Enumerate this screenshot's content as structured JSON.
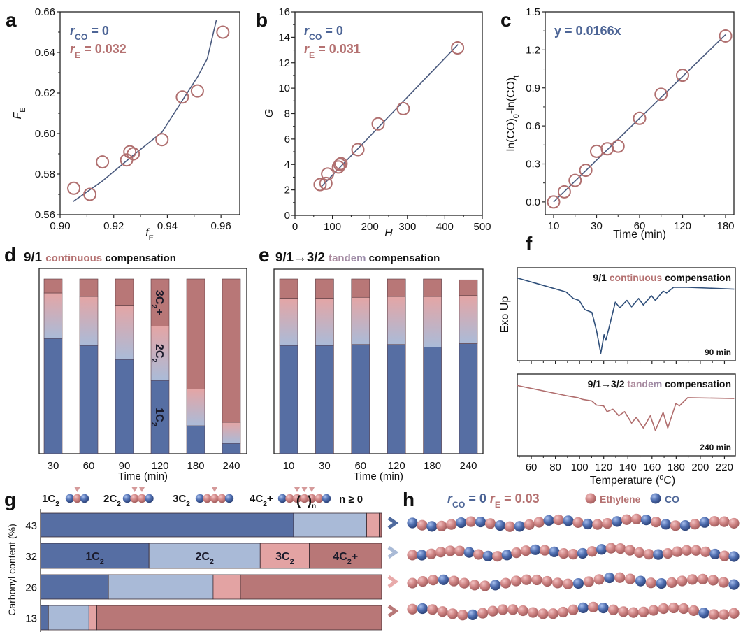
{
  "colors": {
    "blue": "#4d6596",
    "pink": "#b57272",
    "black": "#111111",
    "c1": "#566ea3",
    "c2_top": "#e4a5a5",
    "c2_bottom": "#aabbd8",
    "c2": "#a9bad7",
    "c3": "#e3a3a3",
    "c4": "#b87777",
    "marker": "#b06f6f",
    "fit": "#4a5a7e",
    "dsc_top": "#2f4f7a",
    "dsc_bottom": "#b06d6d",
    "ethylene": "#d08686",
    "co": "#4f6eb0"
  },
  "panels": {
    "a": "a",
    "b": "b",
    "c": "c",
    "d": "d",
    "e": "e",
    "f": "f",
    "g": "g",
    "h": "h"
  },
  "chart_data": [
    {
      "id": "a",
      "type": "scatter",
      "xlabel": [
        {
          "t": "f",
          "italic": true
        },
        {
          "t": "E",
          "sub": true
        }
      ],
      "ylabel": [
        {
          "t": "F",
          "italic": true
        },
        {
          "t": "E",
          "sub": true
        }
      ],
      "xlim": [
        0.9,
        0.967
      ],
      "ylim": [
        0.56,
        0.66
      ],
      "xticks": [
        "0.90",
        "0.92",
        "0.94",
        "0.96"
      ],
      "yticks": [
        "0.56",
        "0.58",
        "0.60",
        "0.62",
        "0.64",
        "0.66"
      ],
      "annotations": [
        [
          {
            "t": "r",
            "italic": true,
            "color": "blue"
          },
          {
            "t": "CO",
            "sub": true,
            "color": "blue"
          },
          {
            "t": " = 0",
            "color": "blue"
          }
        ],
        [
          {
            "t": "r",
            "italic": true,
            "color": "pink"
          },
          {
            "t": "E",
            "sub": true,
            "color": "pink"
          },
          {
            "t": " = 0.032",
            "color": "pink"
          }
        ]
      ],
      "points": [
        [
          0.9051,
          0.573
        ],
        [
          0.9111,
          0.57
        ],
        [
          0.9158,
          0.586
        ],
        [
          0.9248,
          0.587
        ],
        [
          0.926,
          0.591
        ],
        [
          0.9273,
          0.59
        ],
        [
          0.938,
          0.597
        ],
        [
          0.9456,
          0.618
        ],
        [
          0.9512,
          0.621
        ],
        [
          0.9607,
          0.65
        ]
      ],
      "fit_line": [
        [
          0.9049,
          0.5665
        ],
        [
          0.9158,
          0.5766
        ],
        [
          0.9273,
          0.5893
        ],
        [
          0.938,
          0.6007
        ],
        [
          0.9456,
          0.6163
        ],
        [
          0.9512,
          0.6278
        ],
        [
          0.9549,
          0.637
        ],
        [
          0.9583,
          0.656
        ]
      ]
    },
    {
      "id": "b",
      "type": "scatter",
      "xlabel": [
        {
          "t": "H",
          "italic": true
        }
      ],
      "ylabel": [
        {
          "t": "G",
          "italic": true
        }
      ],
      "xlim": [
        0,
        500
      ],
      "ylim": [
        0,
        16
      ],
      "xticks": [
        "0",
        "100",
        "200",
        "300",
        "400",
        "500"
      ],
      "yticks": [
        "0",
        "2",
        "4",
        "6",
        "8",
        "10",
        "12",
        "14",
        "16"
      ],
      "annotations": [
        [
          {
            "t": "r",
            "italic": true,
            "color": "blue"
          },
          {
            "t": "CO",
            "sub": true,
            "color": "blue"
          },
          {
            "t": " = 0",
            "color": "blue"
          }
        ],
        [
          {
            "t": "r",
            "italic": true,
            "color": "pink"
          },
          {
            "t": "E",
            "sub": true,
            "color": "pink"
          },
          {
            "t": " = 0.031",
            "color": "pink"
          }
        ]
      ],
      "points": [
        [
          67,
          2.42
        ],
        [
          82.6,
          2.51
        ],
        [
          87,
          3.25
        ],
        [
          116,
          3.8
        ],
        [
          120,
          3.98
        ],
        [
          123,
          4.07
        ],
        [
          168,
          5.17
        ],
        [
          222,
          7.19
        ],
        [
          289,
          8.39
        ],
        [
          434,
          13.17
        ]
      ],
      "fit_line": [
        [
          70,
          2.24
        ],
        [
          435,
          13.43
        ]
      ]
    },
    {
      "id": "c",
      "type": "scatter",
      "xlabel": [
        {
          "t": "Time (min)"
        }
      ],
      "ylabel": [
        {
          "t": "ln(CO)"
        },
        {
          "t": "0",
          "sub": true
        },
        {
          "t": "-ln(CO)"
        },
        {
          "t": "t",
          "sub": true
        }
      ],
      "xlim": [
        10,
        180
      ],
      "ylim": [
        -0.1,
        1.5
      ],
      "xticks": [
        "10",
        "30",
        "60",
        "120",
        "180"
      ],
      "yticks": [
        "0.0",
        "0.3",
        "0.6",
        "0.9",
        "1.2",
        "1.5"
      ],
      "annotations": [
        [
          {
            "t": "y = 0.0166x",
            "color": "blue"
          }
        ]
      ],
      "points": [
        [
          10,
          0
        ],
        [
          15,
          0.08
        ],
        [
          20,
          0.17
        ],
        [
          25,
          0.25
        ],
        [
          30,
          0.4
        ],
        [
          37.5,
          0.42
        ],
        [
          45,
          0.44
        ],
        [
          60,
          0.66
        ],
        [
          90,
          0.85
        ],
        [
          120,
          1.0
        ],
        [
          180,
          1.31
        ]
      ],
      "fit_line": [
        [
          10,
          0
        ],
        [
          180,
          1.32
        ]
      ]
    },
    {
      "id": "d",
      "type": "bar",
      "stacked": true,
      "title": [
        {
          "t": "9/1 ",
          "color": "black",
          "big": true
        },
        {
          "t": "continuous ",
          "color": "pink"
        },
        {
          "t": "compensation",
          "color": "black"
        }
      ],
      "xlabel": "Time (min)",
      "categories": [
        "30",
        "60",
        "90",
        "120",
        "180",
        "240"
      ],
      "ylim": [
        0,
        100
      ],
      "series": [
        {
          "name": [
            {
              "t": "1C"
            },
            {
              "t": "2",
              "sub": true
            }
          ],
          "values": [
            66,
            62,
            54,
            42,
            16,
            6
          ]
        },
        {
          "name": [
            {
              "t": "2C"
            },
            {
              "t": "2",
              "sub": true
            }
          ],
          "values": [
            26,
            28,
            31,
            31,
            21,
            12
          ]
        },
        {
          "name": [
            {
              "t": "3C"
            },
            {
              "t": "2",
              "sub": true
            },
            {
              "t": "+"
            }
          ],
          "values": [
            8,
            10,
            15,
            27,
            63,
            82
          ]
        }
      ]
    },
    {
      "id": "e",
      "type": "bar",
      "stacked": true,
      "title": [
        {
          "t": "9/1→3/2 ",
          "color": "black",
          "big": true
        },
        {
          "t": "tandem ",
          "color": "tandem"
        },
        {
          "t": "compensation",
          "color": "black"
        }
      ],
      "xlabel": "Time (min)",
      "categories": [
        "10",
        "30",
        "60",
        "120",
        "180",
        "240"
      ],
      "ylim": [
        0,
        100
      ],
      "series": [
        {
          "values": [
            62,
            62,
            62.5,
            62.5,
            61,
            63
          ]
        },
        {
          "values": [
            27,
            27,
            27,
            27.5,
            29,
            27.5
          ]
        },
        {
          "values": [
            11,
            11,
            10.5,
            10,
            10,
            9
          ]
        }
      ]
    },
    {
      "id": "f",
      "type": "line",
      "ylabel": "Exo Up",
      "xlabel": [
        {
          "t": "Temperature ("
        },
        {
          "t": "o",
          "sup": true
        },
        {
          "t": "C)"
        }
      ],
      "xlim": [
        48.4,
        229
      ],
      "xticks": [
        "60",
        "80",
        "100",
        "120",
        "140",
        "160",
        "180",
        "200",
        "220"
      ],
      "series": [
        {
          "title": [
            {
              "t": "9/1 ",
              "color": "black"
            },
            {
              "t": "continuous ",
              "color": "pink"
            },
            {
              "t": "compensation",
              "color": "black"
            }
          ],
          "time_label": "90 min",
          "points": [
            [
              48.4,
              0.89
            ],
            [
              89,
              0.74
            ],
            [
              94.8,
              0.67
            ],
            [
              99.6,
              0.65
            ],
            [
              104.4,
              0.55
            ],
            [
              108.3,
              0.53
            ],
            [
              110.2,
              0.52
            ],
            [
              114.1,
              0.32
            ],
            [
              117.6,
              0.08
            ],
            [
              120.3,
              0.28
            ],
            [
              121.8,
              0.22
            ],
            [
              124.7,
              0.37
            ],
            [
              129.6,
              0.63
            ],
            [
              133.4,
              0.57
            ],
            [
              139.2,
              0.65
            ],
            [
              143.1,
              0.58
            ],
            [
              148.9,
              0.67
            ],
            [
              152.8,
              0.6
            ],
            [
              159.5,
              0.7
            ],
            [
              162.8,
              0.65
            ],
            [
              169.2,
              0.75
            ],
            [
              172.1,
              0.73
            ],
            [
              177.9,
              0.79
            ],
            [
              189.5,
              0.79
            ],
            [
              228.1,
              0.77
            ]
          ]
        },
        {
          "title": [
            {
              "t": "9/1→3/2 ",
              "color": "black"
            },
            {
              "t": "tandem ",
              "color": "tandem"
            },
            {
              "t": "compensation",
              "color": "black"
            }
          ],
          "time_label": "240 min",
          "points": [
            [
              48.4,
              0.86
            ],
            [
              90.9,
              0.73
            ],
            [
              98.6,
              0.71
            ],
            [
              102.5,
              0.69
            ],
            [
              110.2,
              0.67
            ],
            [
              114.1,
              0.62
            ],
            [
              119.9,
              0.61
            ],
            [
              122.8,
              0.54
            ],
            [
              127.6,
              0.57
            ],
            [
              132.5,
              0.49
            ],
            [
              137.3,
              0.54
            ],
            [
              143.1,
              0.4
            ],
            [
              147,
              0.47
            ],
            [
              152.8,
              0.34
            ],
            [
              158.6,
              0.49
            ],
            [
              162.8,
              0.31
            ],
            [
              169.2,
              0.53
            ],
            [
              173,
              0.34
            ],
            [
              179.8,
              0.64
            ],
            [
              182.7,
              0.61
            ],
            [
              189.5,
              0.71
            ],
            [
              228.1,
              0.7
            ]
          ]
        }
      ]
    },
    {
      "id": "g",
      "type": "bar",
      "orientation": "horizontal",
      "stacked": true,
      "ylabel": "Carbonyl content (%)",
      "categories": [
        "43",
        "32",
        "26",
        "13"
      ],
      "xlim": [
        0,
        100
      ],
      "series": [
        {
          "name": [
            {
              "t": "1C"
            },
            {
              "t": "2",
              "sub": true
            }
          ],
          "values": [
            74.2,
            31.8,
            19.9,
            2.3
          ]
        },
        {
          "name": [
            {
              "t": "2C"
            },
            {
              "t": "2",
              "sub": true
            }
          ],
          "values": [
            21.4,
            32.6,
            30.7,
            11.9
          ]
        },
        {
          "name": [
            {
              "t": "3C"
            },
            {
              "t": "2",
              "sub": true
            }
          ],
          "values": [
            3.7,
            14.4,
            8.0,
            2.3
          ]
        },
        {
          "name": [
            {
              "t": "4C"
            },
            {
              "t": "2",
              "sub": true
            },
            {
              "t": "+"
            }
          ],
          "values": [
            0.7,
            21.2,
            41.4,
            83.5
          ]
        }
      ],
      "legend": [
        {
          "label": [
            {
              "t": "1C"
            },
            {
              "t": "2",
              "sub": true
            }
          ],
          "beads": "CEC",
          "marks": [
            1
          ]
        },
        {
          "label": [
            {
              "t": "2C"
            },
            {
              "t": "2",
              "sub": true
            }
          ],
          "beads": "CEEC",
          "marks": [
            1,
            2
          ]
        },
        {
          "label": [
            {
              "t": "3C"
            },
            {
              "t": "2",
              "sub": true
            }
          ],
          "beads": "CEEEC",
          "marks": [
            2
          ]
        },
        {
          "label": [
            {
              "t": "4C"
            },
            {
              "t": "2",
              "sub": true
            },
            {
              "t": "+"
            }
          ],
          "beads": "CEEEEEC",
          "marks": [
            2,
            3,
            4
          ]
        }
      ],
      "bracket_open": "(",
      "bracket_close": ")",
      "repeat_sub": "n",
      "n_note": "n ≥ 0"
    }
  ],
  "chains": {
    "header": [
      {
        "t": "r",
        "italic": true,
        "color": "blue"
      },
      {
        "t": "CO",
        "sub": true,
        "color": "blue"
      },
      {
        "t": " = 0 ",
        "color": "blue"
      },
      {
        "t": "r",
        "italic": true,
        "color": "pink"
      },
      {
        "t": "E",
        "sub": true,
        "color": "pink"
      },
      {
        "t": " = 0.03",
        "color": "pink"
      }
    ],
    "legend_ethylene": "Ethylene",
    "legend_co": "CO",
    "arrow_colors": [
      "#4f6a9e",
      "#a9bad6",
      "#e8aaaa",
      "#b87878"
    ],
    "sequences": [
      "CECEECECECECEECECECEECEECECECECEEE",
      "ECEEEECECECEECECEECECEEEEECEEEEECEC",
      "EEECEEEECEEEEEEECEECEECECEEEEEEC",
      "ECEEEECEEEEEEEEEECECEEEEEEEEECEEE"
    ]
  }
}
